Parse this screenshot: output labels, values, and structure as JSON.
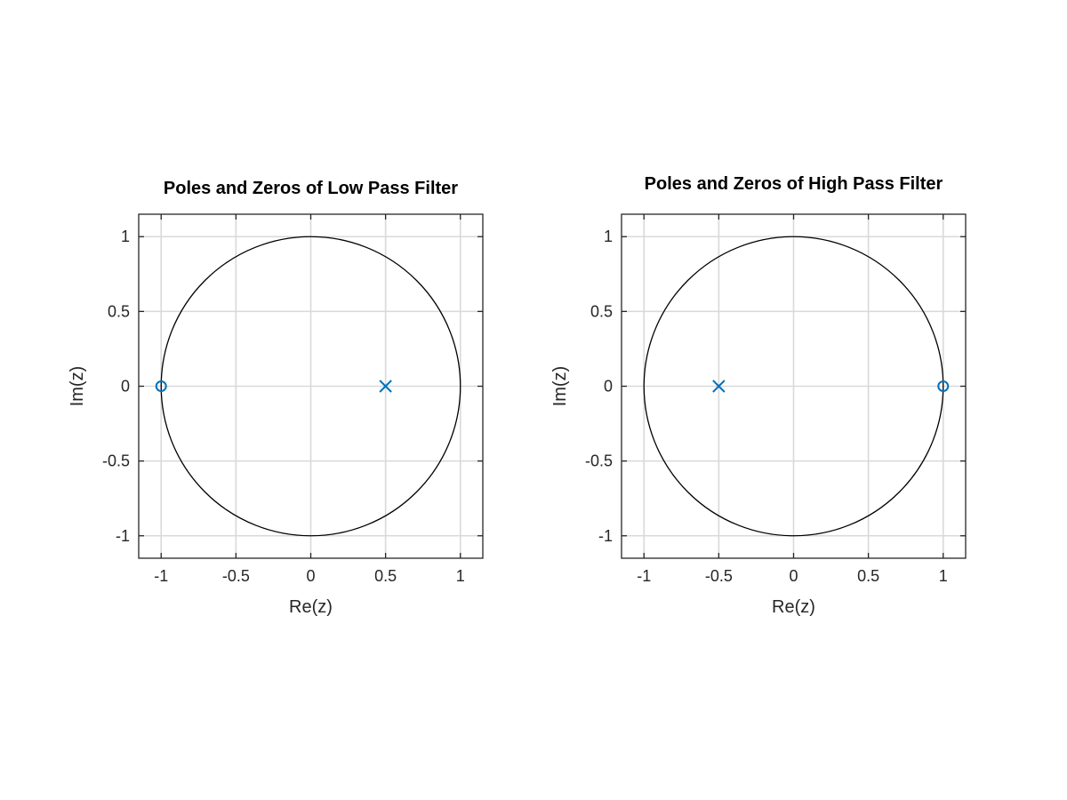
{
  "figure": {
    "background": "#ffffff"
  },
  "chart_data": [
    {
      "type": "scatter",
      "title": "Poles and Zeros of Low Pass Filter",
      "xlabel": "Re(z)",
      "ylabel": "Im(z)",
      "xlim": [
        -1.15,
        1.15
      ],
      "ylim": [
        -1.15,
        1.15
      ],
      "xticks": [
        -1,
        -0.5,
        0,
        0.5,
        1
      ],
      "xtick_labels": [
        "-1",
        "-0.5",
        "0",
        "0.5",
        "1"
      ],
      "yticks": [
        -1,
        -0.5,
        0,
        0.5,
        1
      ],
      "ytick_labels": [
        "-1",
        "-0.5",
        "0",
        "0.5",
        "1"
      ],
      "grid": true,
      "unit_circle": true,
      "poles": [
        {
          "re": 0.5,
          "im": 0
        }
      ],
      "zeros": [
        {
          "re": -1,
          "im": 0
        }
      ],
      "marker_color": "#0072BD",
      "circle_color": "#000000",
      "grid_color": "#d9d9d9"
    },
    {
      "type": "scatter",
      "title": "Poles and Zeros of High Pass Filter",
      "xlabel": "Re(z)",
      "ylabel": "Im(z)",
      "xlim": [
        -1.15,
        1.15
      ],
      "ylim": [
        -1.15,
        1.15
      ],
      "xticks": [
        -1,
        -0.5,
        0,
        0.5,
        1
      ],
      "xtick_labels": [
        "-1",
        "-0.5",
        "0",
        "0.5",
        "1"
      ],
      "yticks": [
        -1,
        -0.5,
        0,
        0.5,
        1
      ],
      "ytick_labels": [
        "-1",
        "-0.5",
        "0",
        "0.5",
        "1"
      ],
      "grid": true,
      "unit_circle": true,
      "poles": [
        {
          "re": -0.5,
          "im": 0
        }
      ],
      "zeros": [
        {
          "re": 1,
          "im": 0
        }
      ],
      "marker_color": "#0072BD",
      "circle_color": "#000000",
      "grid_color": "#d9d9d9"
    }
  ]
}
